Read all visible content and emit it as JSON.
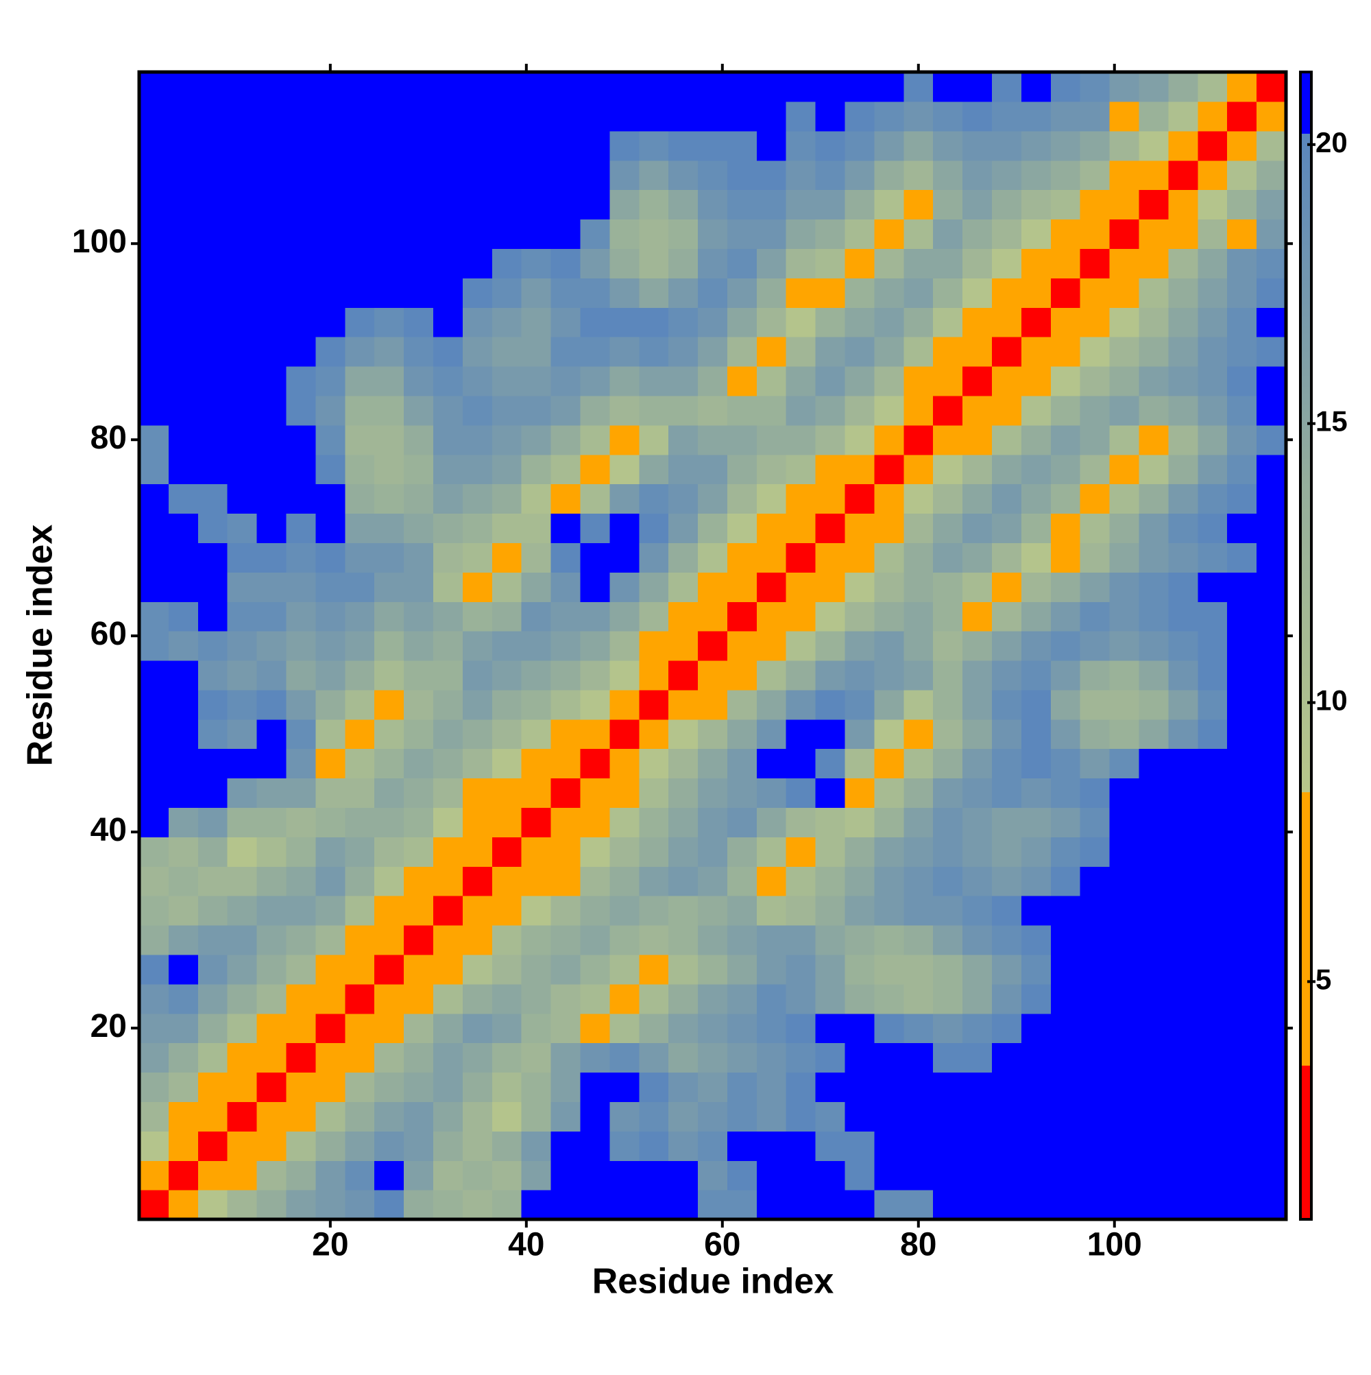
{
  "chart_data": {
    "type": "heatmap",
    "x_label": "Residue index",
    "y_label": "Residue index",
    "symmetric": true,
    "x": [
      2,
      5,
      8,
      11,
      14,
      17,
      20,
      23,
      26,
      29,
      32,
      35,
      38,
      41,
      44,
      47,
      50,
      53,
      56,
      59,
      62,
      65,
      68,
      71,
      74,
      77,
      80,
      83,
      86,
      89,
      92,
      95,
      98,
      101,
      104,
      107,
      110,
      113,
      116
    ],
    "y": [
      2,
      5,
      8,
      11,
      14,
      17,
      20,
      23,
      26,
      29,
      32,
      35,
      38,
      41,
      44,
      47,
      50,
      53,
      56,
      59,
      62,
      65,
      68,
      71,
      74,
      77,
      80,
      83,
      86,
      89,
      92,
      95,
      98,
      101,
      104,
      107,
      110,
      113,
      116
    ],
    "xlim": [
      0.5,
      117.5
    ],
    "ylim": [
      0.5,
      117.5
    ],
    "xticks": [
      20,
      40,
      60,
      80,
      100
    ],
    "yticks": [
      20,
      40,
      60,
      80,
      100
    ],
    "z": [
      [
        2,
        5,
        9,
        12,
        14,
        16,
        17,
        18,
        20,
        14,
        13,
        12,
        13,
        22,
        22,
        22,
        22,
        22,
        22,
        19,
        19,
        22,
        22,
        22,
        22,
        19,
        19,
        22,
        22,
        22,
        22,
        22,
        22,
        22,
        22,
        22,
        22,
        22,
        22
      ],
      [
        2,
        5,
        8,
        12,
        14,
        17,
        19,
        22,
        16,
        12,
        13,
        12,
        16,
        22,
        22,
        22,
        22,
        22,
        18,
        20,
        22,
        22,
        22,
        20,
        22,
        22,
        22,
        22,
        22,
        22,
        22,
        22,
        22,
        22,
        22,
        22,
        22,
        22
      ],
      [
        2,
        5,
        7,
        11,
        14,
        16,
        18,
        17,
        14,
        12,
        14,
        17,
        22,
        22,
        19,
        20,
        18,
        19,
        22,
        22,
        22,
        20,
        20,
        22,
        22,
        22,
        22,
        22,
        22,
        22,
        22,
        22,
        22,
        22,
        22,
        22,
        22
      ],
      [
        2,
        5,
        7,
        11,
        14,
        16,
        17,
        15,
        12,
        9,
        13,
        17,
        22,
        18,
        19,
        17,
        18,
        19,
        18,
        20,
        19,
        21,
        22,
        22,
        22,
        22,
        22,
        22,
        22,
        22,
        22,
        22,
        22,
        22,
        22,
        22
      ],
      [
        2,
        5,
        8,
        12,
        14,
        15,
        16,
        14,
        11,
        13,
        16,
        22,
        22,
        20,
        18,
        17,
        19,
        18,
        20,
        22,
        22,
        22,
        21,
        21,
        21,
        21,
        21,
        22,
        22,
        22,
        22,
        22,
        22,
        22,
        22
      ],
      [
        2,
        5,
        8,
        12,
        14,
        16,
        15,
        13,
        12,
        16,
        18,
        19,
        17,
        15,
        16,
        17,
        18,
        19,
        20,
        22,
        22,
        22,
        20,
        20,
        22,
        22,
        22,
        22,
        22,
        22,
        22,
        22,
        22,
        22
      ],
      [
        2,
        5,
        8,
        12,
        15,
        17,
        16,
        13,
        12,
        6,
        11,
        14,
        16,
        17,
        18,
        19,
        20,
        22,
        22,
        20,
        19,
        18,
        19,
        20,
        22,
        22,
        22,
        22,
        22,
        22,
        22,
        22,
        22
      ],
      [
        2,
        5,
        8,
        11,
        14,
        15,
        14,
        12,
        11,
        6,
        11,
        14,
        16,
        17,
        19,
        18,
        16,
        14,
        13,
        12,
        13,
        15,
        18,
        20,
        22,
        22,
        22,
        22,
        22,
        22,
        22,
        22
      ],
      [
        2,
        5,
        7,
        10,
        12,
        14,
        15,
        13,
        11,
        6,
        11,
        13,
        15,
        17,
        18,
        16,
        13,
        12,
        12,
        13,
        15,
        17,
        19,
        21,
        22,
        22,
        22,
        22,
        22,
        22,
        22
      ],
      [
        2,
        4,
        7,
        11,
        13,
        14,
        15,
        13,
        12,
        13,
        15,
        16,
        17,
        17,
        15,
        14,
        13,
        14,
        16,
        18,
        19,
        20,
        21,
        22,
        22,
        22,
        22,
        22,
        22,
        22
      ],
      [
        2,
        4,
        6,
        9,
        12,
        14,
        15,
        14,
        13,
        14,
        15,
        11,
        12,
        14,
        16,
        17,
        18,
        18,
        19,
        20,
        21,
        22,
        22,
        22,
        22,
        22,
        22,
        22,
        22
      ],
      [
        2,
        4,
        6,
        8,
        12,
        14,
        16,
        17,
        16,
        13,
        7,
        11,
        13,
        15,
        17,
        18,
        19,
        18,
        17,
        18,
        20,
        21,
        22,
        22,
        22,
        22,
        22,
        22
      ],
      [
        2,
        4,
        6,
        9,
        12,
        14,
        16,
        17,
        14,
        11,
        8,
        11,
        14,
        16,
        17,
        18,
        17,
        16,
        17,
        19,
        20,
        22,
        22,
        22,
        22,
        22,
        22
      ],
      [
        2,
        4,
        6,
        10,
        13,
        15,
        17,
        18,
        15,
        12,
        11,
        10,
        13,
        16,
        18,
        17,
        16,
        16,
        17,
        19,
        21,
        22,
        22,
        22,
        22,
        22
      ],
      [
        2,
        4,
        7,
        11,
        14,
        16,
        17,
        18,
        20,
        22,
        7,
        11,
        14,
        17,
        18,
        19,
        18,
        19,
        20,
        21,
        22,
        22,
        22,
        22,
        22
      ],
      [
        2,
        5,
        9,
        12,
        15,
        17,
        22,
        22,
        20,
        11,
        6,
        11,
        14,
        17,
        19,
        20,
        19,
        17,
        19,
        21,
        22,
        22,
        22,
        22
      ],
      [
        2,
        5,
        9,
        12,
        15,
        18,
        22,
        21,
        17,
        9,
        7,
        12,
        15,
        18,
        20,
        17,
        14,
        13,
        15,
        18,
        20,
        22,
        22
      ],
      [
        2,
        5,
        8,
        12,
        15,
        18,
        20,
        19,
        15,
        10,
        13,
        16,
        19,
        20,
        15,
        12,
        12,
        13,
        16,
        19,
        21,
        22
      ],
      [
        2,
        4,
        7,
        11,
        14,
        17,
        18,
        17,
        16,
        13,
        16,
        18,
        19,
        17,
        14,
        13,
        15,
        18,
        20,
        21,
        22
      ],
      [
        2,
        4,
        6,
        10,
        13,
        16,
        17,
        15,
        12,
        14,
        16,
        18,
        19,
        18,
        17,
        18,
        19,
        20,
        21,
        22
      ],
      [
        2,
        4,
        6,
        9,
        12,
        14,
        15,
        13,
        7,
        12,
        15,
        17,
        19,
        18,
        19,
        20,
        20,
        21,
        21
      ],
      [
        2,
        4,
        6,
        9,
        12,
        14,
        13,
        11,
        7,
        12,
        14,
        16,
        18,
        19,
        20,
        21,
        21,
        22
      ],
      [
        2,
        4,
        7,
        11,
        14,
        16,
        15,
        12,
        9,
        7,
        12,
        15,
        17,
        18,
        19,
        20,
        21
      ],
      [
        2,
        4,
        8,
        12,
        15,
        17,
        16,
        13,
        7,
        11,
        14,
        17,
        19,
        20,
        21,
        22
      ],
      [
        2,
        5,
        9,
        12,
        15,
        17,
        15,
        13,
        6,
        11,
        14,
        17,
        19,
        20,
        22
      ],
      [
        2,
        5,
        9,
        12,
        15,
        16,
        15,
        12,
        6,
        10,
        14,
        17,
        19,
        21
      ],
      [
        2,
        4,
        7,
        11,
        14,
        16,
        15,
        11,
        7,
        12,
        15,
        18,
        20
      ],
      [
        2,
        4,
        6,
        10,
        13,
        15,
        16,
        14,
        15,
        17,
        19,
        21
      ],
      [
        2,
        4,
        6,
        9,
        12,
        14,
        16,
        17,
        18,
        20,
        21
      ],
      [
        2,
        4,
        6,
        9,
        12,
        14,
        16,
        18,
        19,
        20
      ],
      [
        2,
        4,
        6,
        9,
        12,
        15,
        17,
        19,
        21
      ],
      [
        2,
        4,
        7,
        11,
        14,
        16,
        18,
        20
      ],
      [
        2,
        4,
        8,
        12,
        15,
        18,
        19
      ],
      [
        2,
        4,
        8,
        12,
        7,
        17
      ],
      [
        2,
        4,
        9,
        13,
        16
      ],
      [
        2,
        5,
        10,
        14
      ],
      [
        2,
        5,
        11
      ],
      [
        2,
        5
      ],
      [
        2
      ]
    ],
    "zlim": [
      0.74,
      21.3
    ],
    "zticks": [
      5,
      10,
      15,
      20
    ],
    "colorscale": [
      {
        "value": 0.74,
        "color": "#ff0000"
      },
      {
        "value": 3.5,
        "color": "#ff0000"
      },
      {
        "value": 3.5,
        "color": "#ffa500"
      },
      {
        "value": 8.4,
        "color": "#ffa500"
      },
      {
        "value": 8.4,
        "color": "#b8c78a"
      },
      {
        "value": 14,
        "color": "#94ad9c"
      },
      {
        "value": 20.2,
        "color": "#5a86bd"
      },
      {
        "value": 20.2,
        "color": "#0000ff"
      },
      {
        "value": 21.3,
        "color": "#0000ff"
      }
    ]
  }
}
